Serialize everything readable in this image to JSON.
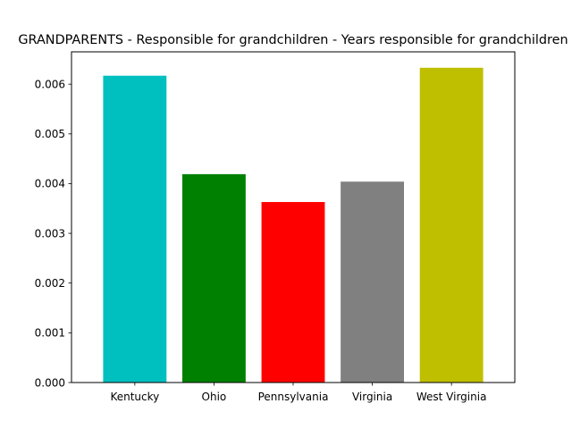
{
  "chart_data": {
    "type": "bar",
    "title": "GRANDPARENTS - Responsible for grandchildren - Years responsible for grandchildren",
    "xlabel": "",
    "ylabel": "",
    "categories": [
      "Kentucky",
      "Ohio",
      "Pennsylvania",
      "Virginia",
      "West Virginia"
    ],
    "values": [
      0.00617,
      0.00419,
      0.00363,
      0.00404,
      0.00633
    ],
    "colors": [
      "#00bfbf",
      "#008000",
      "#ff0000",
      "#808080",
      "#bfbf00"
    ],
    "ylim": [
      0,
      0.00665
    ],
    "yticks": [
      0.0,
      0.001,
      0.002,
      0.003,
      0.004,
      0.005,
      0.006
    ],
    "ytick_labels": [
      "0.000",
      "0.001",
      "0.002",
      "0.003",
      "0.004",
      "0.005",
      "0.006"
    ],
    "grid": false,
    "legend": "none"
  }
}
